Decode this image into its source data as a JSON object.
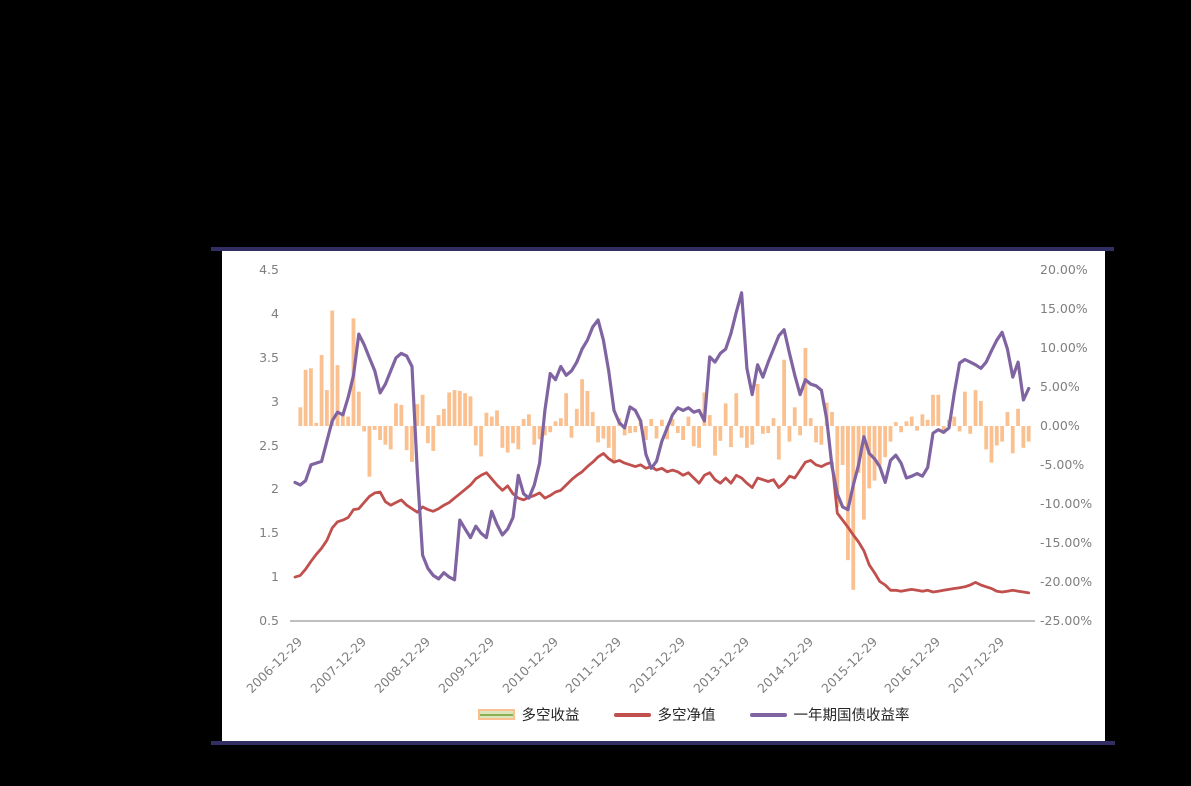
{
  "page": {
    "background": "#000000"
  },
  "panel": {
    "background": "#FFFFFF",
    "border_color": "#312e63",
    "baseline_color": "#BFBFBF",
    "tick_color": "#7F7F7F"
  },
  "chart_data": {
    "type": "combo",
    "x_monthly_start": "2006-12",
    "x_monthly_end": "2018-06",
    "x_tick_labels": [
      "2006-12-29",
      "2007-12-29",
      "2008-12-29",
      "2009-12-29",
      "2010-12-29",
      "2011-12-29",
      "2012-12-29",
      "2013-12-29",
      "2014-12-29",
      "2015-12-29",
      "2016-12-29",
      "2017-12-29"
    ],
    "left_axis": {
      "min": 0.5,
      "max": 4.5,
      "tick_labels": [
        "4.5",
        "4",
        "3.5",
        "3",
        "2.5",
        "2",
        "1.5",
        "1",
        "0.5"
      ]
    },
    "right_axis": {
      "min": -25,
      "max": 20,
      "tick_labels": [
        "20.00%",
        "15.00%",
        "10.00%",
        "5.00%",
        "0.00%",
        "-5.00%",
        "-10.00%",
        "-15.00%",
        "-20.00%",
        "-25.00%"
      ]
    },
    "grid": "off",
    "legend_position": "bottom",
    "series": [
      {
        "name": "多空收益",
        "type": "bar",
        "axis": "right",
        "unit": "%",
        "color": "#FAC090",
        "values": [
          null,
          2.4,
          7.2,
          7.4,
          0.4,
          9.1,
          4.6,
          14.8,
          7.8,
          1.6,
          1.2,
          13.8,
          4.4,
          -0.7,
          -6.5,
          -0.5,
          -1.8,
          -2.4,
          -3.0,
          2.9,
          2.7,
          -3.1,
          -4.6,
          2.8,
          4.0,
          -2.2,
          -3.2,
          1.4,
          2.2,
          4.3,
          4.6,
          4.5,
          4.2,
          3.8,
          -2.5,
          -3.9,
          1.7,
          1.2,
          2.0,
          -2.8,
          -3.4,
          -2.2,
          -3.0,
          0.9,
          1.5,
          -2.4,
          -1.7,
          -1.2,
          -0.8,
          0.6,
          1.0,
          4.2,
          -1.5,
          2.2,
          6.0,
          4.5,
          1.8,
          -2.1,
          -1.6,
          -2.8,
          -4.5,
          1.0,
          -1.2,
          -0.9,
          -0.8,
          0.8,
          -1.8,
          0.9,
          -1.6,
          0.8,
          -1.7,
          0.9,
          -0.9,
          -1.8,
          1.2,
          -2.6,
          -2.8,
          4.3,
          1.4,
          -3.8,
          -1.9,
          2.9,
          -2.7,
          4.2,
          -1.5,
          -2.8,
          -2.4,
          5.4,
          -1.0,
          -0.9,
          1.0,
          -4.3,
          8.5,
          -2.0,
          2.4,
          -1.2,
          10.0,
          1.0,
          -2.1,
          -2.4,
          3.0,
          1.8,
          -10.4,
          -5.0,
          -17.2,
          -21.0,
          -6.0,
          -12.0,
          -8.0,
          -7.0,
          -5.0,
          -4.0,
          -2.0,
          0.5,
          -0.8,
          0.6,
          1.2,
          -0.6,
          1.5,
          0.8,
          4.0,
          4.0,
          -1.0,
          0.8,
          1.2,
          -0.7,
          4.4,
          -1.0,
          4.6,
          3.2,
          -3.0,
          -4.7,
          -2.5,
          -2.0,
          1.8,
          -3.5,
          2.2,
          -2.8,
          -2.0
        ]
      },
      {
        "name": "多空净值",
        "type": "line",
        "axis": "left",
        "color": "#C0504D",
        "values": [
          1.0,
          1.02,
          1.09,
          1.18,
          1.26,
          1.33,
          1.42,
          1.56,
          1.63,
          1.65,
          1.68,
          1.77,
          1.78,
          1.85,
          1.92,
          1.96,
          1.97,
          1.86,
          1.82,
          1.85,
          1.88,
          1.82,
          1.78,
          1.74,
          1.8,
          1.77,
          1.75,
          1.78,
          1.82,
          1.85,
          1.9,
          1.95,
          2.0,
          2.05,
          2.12,
          2.16,
          2.19,
          2.12,
          2.05,
          1.99,
          2.04,
          1.95,
          1.9,
          1.88,
          1.91,
          1.93,
          1.96,
          1.9,
          1.93,
          1.97,
          1.99,
          2.05,
          2.11,
          2.16,
          2.2,
          2.26,
          2.31,
          2.37,
          2.41,
          2.35,
          2.31,
          2.33,
          2.3,
          2.28,
          2.26,
          2.28,
          2.24,
          2.26,
          2.22,
          2.24,
          2.2,
          2.22,
          2.2,
          2.16,
          2.19,
          2.13,
          2.07,
          2.16,
          2.19,
          2.11,
          2.07,
          2.13,
          2.07,
          2.16,
          2.13,
          2.07,
          2.02,
          2.13,
          2.11,
          2.09,
          2.11,
          2.02,
          2.07,
          2.15,
          2.13,
          2.22,
          2.31,
          2.33,
          2.28,
          2.26,
          2.29,
          2.31,
          1.73,
          1.65,
          1.57,
          1.48,
          1.4,
          1.3,
          1.14,
          1.05,
          0.95,
          0.91,
          0.85,
          0.85,
          0.84,
          0.85,
          0.86,
          0.85,
          0.84,
          0.85,
          0.83,
          0.84,
          0.85,
          0.86,
          0.87,
          0.88,
          0.89,
          0.91,
          0.94,
          0.91,
          0.89,
          0.87,
          0.84,
          0.83,
          0.84,
          0.85,
          0.84,
          0.83,
          0.82
        ]
      },
      {
        "name": "一年期国债收益率",
        "type": "line",
        "axis": "left",
        "color": "#8064A2",
        "values": [
          2.08,
          2.05,
          2.1,
          2.28,
          2.3,
          2.32,
          2.55,
          2.78,
          2.88,
          2.85,
          3.05,
          3.3,
          3.77,
          3.65,
          3.5,
          3.35,
          3.1,
          3.2,
          3.35,
          3.5,
          3.55,
          3.52,
          3.4,
          2.2,
          1.25,
          1.1,
          1.02,
          0.98,
          1.05,
          1.0,
          0.97,
          1.65,
          1.55,
          1.45,
          1.58,
          1.5,
          1.45,
          1.75,
          1.6,
          1.48,
          1.55,
          1.68,
          2.16,
          1.95,
          1.9,
          2.05,
          2.3,
          2.9,
          3.32,
          3.25,
          3.4,
          3.3,
          3.35,
          3.45,
          3.6,
          3.7,
          3.85,
          3.93,
          3.7,
          3.35,
          2.9,
          2.76,
          2.7,
          2.94,
          2.9,
          2.78,
          2.4,
          2.24,
          2.32,
          2.55,
          2.7,
          2.85,
          2.93,
          2.9,
          2.93,
          2.88,
          2.9,
          2.78,
          3.51,
          3.45,
          3.55,
          3.6,
          3.78,
          4.02,
          4.24,
          3.38,
          3.08,
          3.42,
          3.28,
          3.45,
          3.6,
          3.75,
          3.82,
          3.55,
          3.3,
          3.08,
          3.25,
          3.2,
          3.18,
          3.13,
          2.8,
          2.26,
          1.95,
          1.8,
          1.77,
          2.05,
          2.28,
          2.6,
          2.41,
          2.35,
          2.26,
          2.08,
          2.33,
          2.39,
          2.3,
          2.13,
          2.15,
          2.18,
          2.15,
          2.25,
          2.64,
          2.68,
          2.65,
          2.7,
          3.1,
          3.44,
          3.48,
          3.45,
          3.42,
          3.38,
          3.45,
          3.58,
          3.7,
          3.79,
          3.6,
          3.28,
          3.45,
          3.02,
          3.15
        ]
      }
    ],
    "legend_swatch": {
      "bar_outer": "#FAC090",
      "bar_inner": "#d9e5bb",
      "bar_mid_line": "#8fae54"
    }
  }
}
